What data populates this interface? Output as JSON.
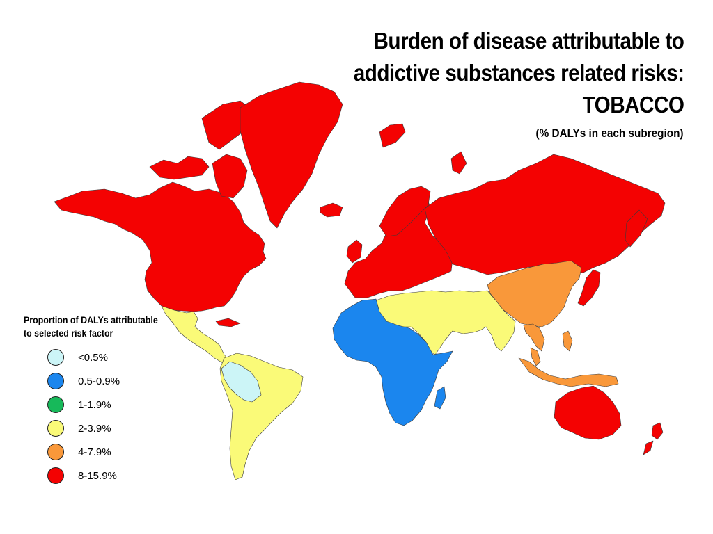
{
  "title": {
    "line1": "Burden of disease attributable to",
    "line2": "addictive substances related risks:",
    "line3": "TOBACCO"
  },
  "subtitle": "(% DALYs in each subregion)",
  "legend": {
    "title_line1": "Proportion of DALYs attributable",
    "title_line2": "to selected risk factor",
    "items": [
      {
        "label": "<0.5%",
        "color": "#ccf5f7"
      },
      {
        "label": "0.5-0.9%",
        "color": "#1b86ee"
      },
      {
        "label": "1-1.9%",
        "color": "#17b95a"
      },
      {
        "label": "2-3.9%",
        "color": "#fafa78"
      },
      {
        "label": "4-7.9%",
        "color": "#f9983a"
      },
      {
        "label": "8-15.9%",
        "color": "#f40202"
      }
    ]
  }
}
